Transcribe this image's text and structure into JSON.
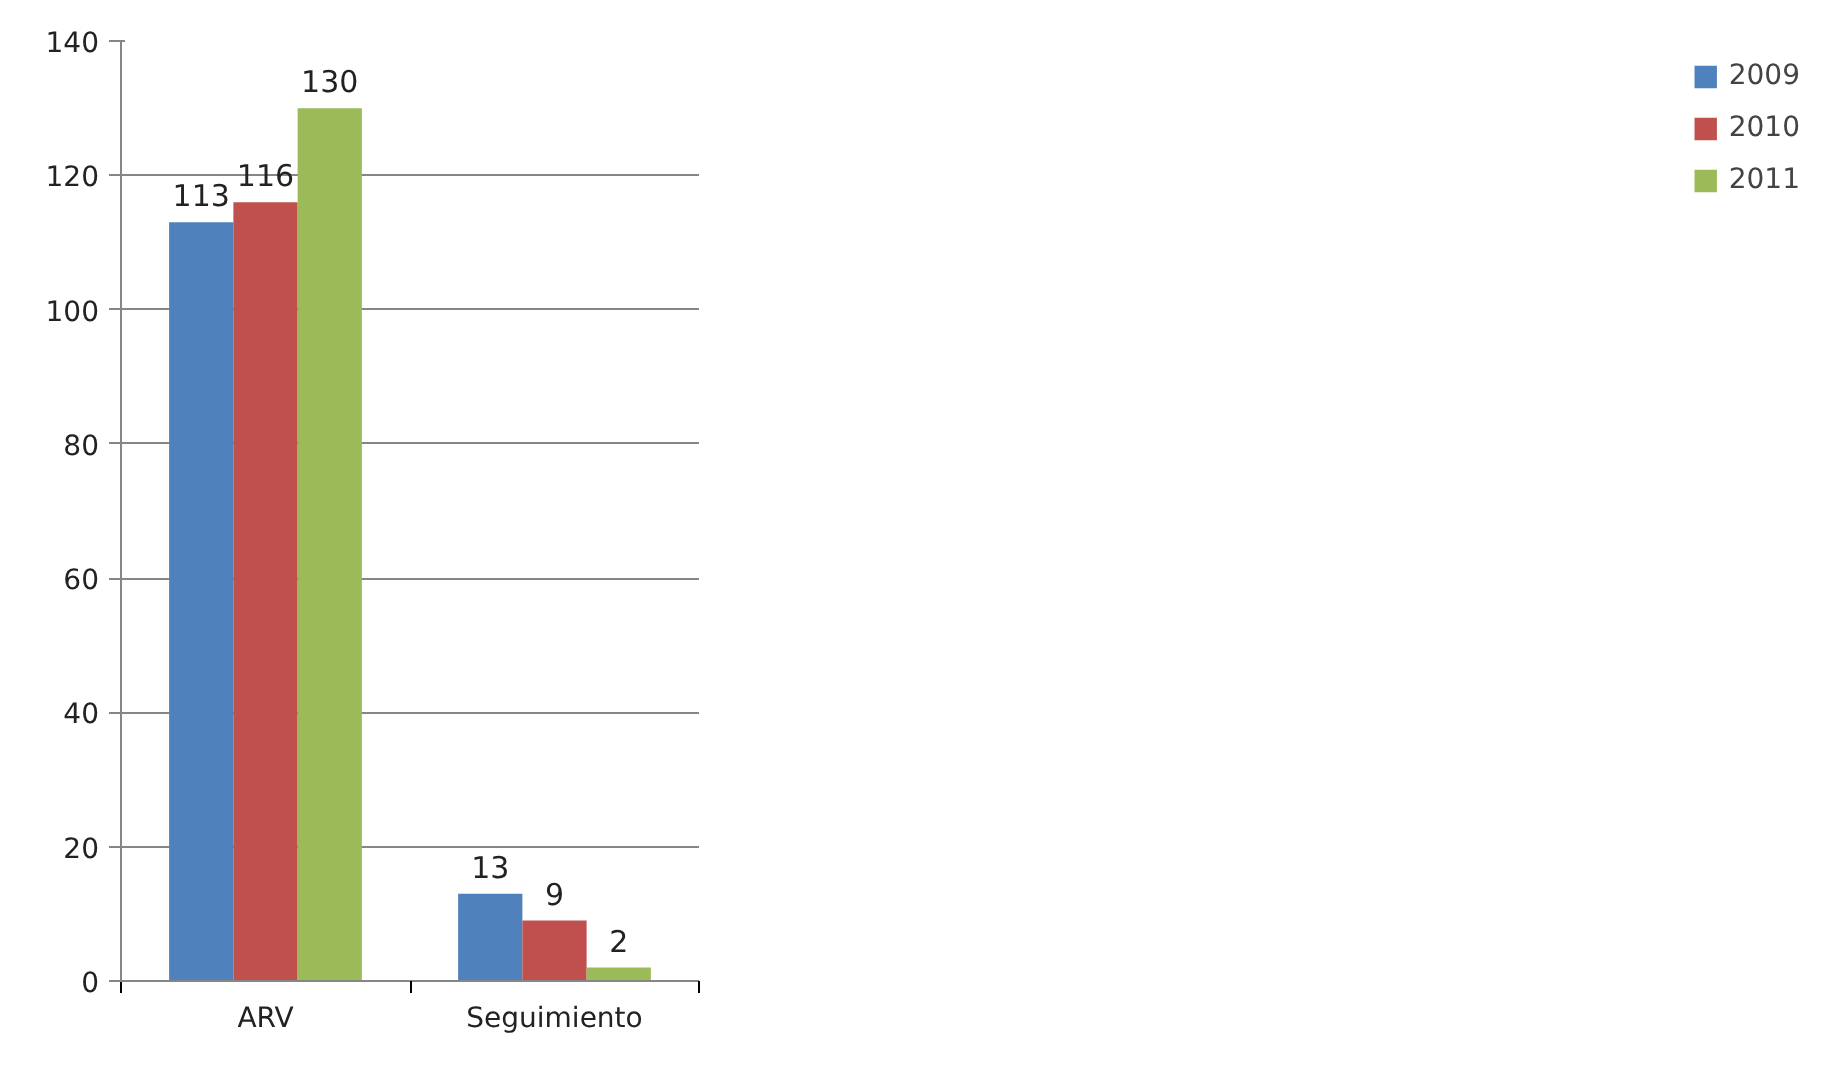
{
  "chart_data": {
    "type": "bar",
    "categories": [
      "ARV",
      "Seguimiento"
    ],
    "series": [
      {
        "name": "2009",
        "color": "#4f81bd",
        "values": [
          113,
          13
        ]
      },
      {
        "name": "2010",
        "color": "#c0504d",
        "values": [
          116,
          9
        ]
      },
      {
        "name": "2011",
        "color": "#9bbb59",
        "values": [
          130,
          2
        ]
      }
    ],
    "ylim": [
      0,
      140
    ],
    "yticks": [
      0,
      20,
      40,
      60,
      80,
      100,
      120,
      140
    ],
    "grid": "y",
    "legend": "right",
    "data_labels": true
  }
}
